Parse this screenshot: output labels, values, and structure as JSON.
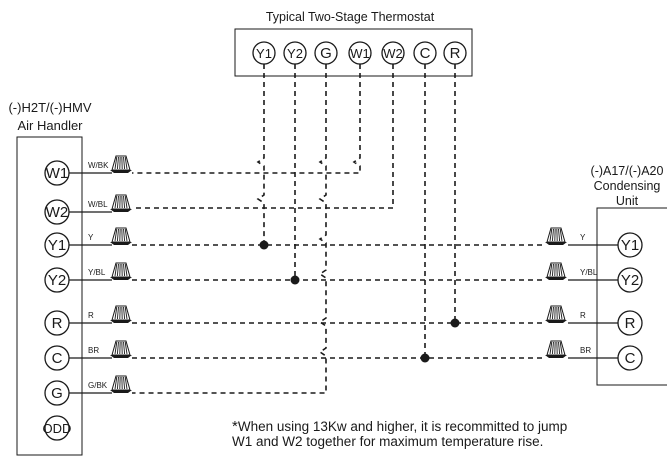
{
  "thermostat": {
    "title": "Typical Two-Stage Thermostat",
    "terminals": [
      "Y1",
      "Y2",
      "G",
      "W1",
      "W2",
      "C",
      "R"
    ]
  },
  "air_handler": {
    "title_line1": "(-)H2T/(-)HMV",
    "title_line2": "Air Handler",
    "terminals": [
      {
        "name": "W1",
        "wire": "W/BK"
      },
      {
        "name": "W2",
        "wire": "W/BL"
      },
      {
        "name": "Y1",
        "wire": "Y"
      },
      {
        "name": "Y2",
        "wire": "Y/BL"
      },
      {
        "name": "R",
        "wire": "R"
      },
      {
        "name": "C",
        "wire": "BR"
      },
      {
        "name": "G",
        "wire": "G/BK"
      },
      {
        "name": "ODD",
        "wire": ""
      }
    ]
  },
  "condensing_unit": {
    "title_line1": "(-)A17/(-)A20",
    "title_line2": "Condensing",
    "title_line3": "Unit",
    "terminals": [
      {
        "name": "Y1",
        "wire": "Y"
      },
      {
        "name": "Y2",
        "wire": "Y/BL"
      },
      {
        "name": "R",
        "wire": "R"
      },
      {
        "name": "C",
        "wire": "BR"
      }
    ]
  },
  "note": {
    "star": "*",
    "line1": "When using 13Kw and higher, it is recommitted to jump",
    "line2": "W1 and W2 together for maximum temperature rise."
  }
}
